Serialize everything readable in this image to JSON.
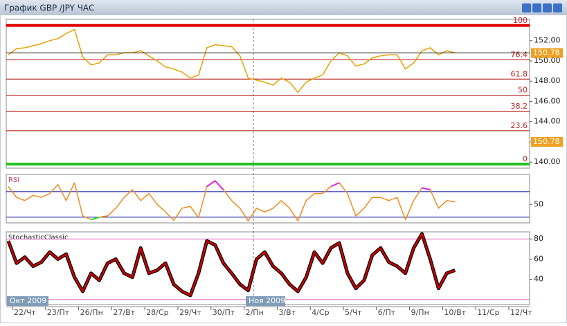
{
  "window": {
    "title": "График GBP /JPY  ЧАС"
  },
  "month_labels": [
    "Окт 2009",
    "Ноя 2009"
  ],
  "chart_data": [
    {
      "type": "line",
      "categories": [
        "22/Чт",
        null,
        null,
        null,
        "23/Пт",
        null,
        null,
        null,
        "26/Пн",
        null,
        null,
        null,
        "27/Вт",
        null,
        null,
        null,
        "28/Ср",
        null,
        null,
        null,
        "29/Чт",
        null,
        null,
        null,
        "30/Пт",
        null,
        null,
        null,
        "2/Пн",
        null,
        null,
        null,
        "3/Вт",
        null,
        null,
        null,
        "4/Ср",
        null,
        null,
        null,
        "5/Чт",
        null,
        null,
        null,
        "6/Пт",
        null,
        null,
        null,
        "9/Пн",
        null,
        null,
        null,
        "10/Вт",
        null,
        null,
        null,
        "11/Ср",
        null,
        null,
        null,
        "12/Чт",
        null,
        null,
        null
      ],
      "series": [
        {
          "color": "#e8a000",
          "values": [
            150.6,
            151.2,
            151.3,
            151.5,
            151.7,
            152.0,
            152.2,
            152.7,
            153.1,
            150.4,
            149.6,
            149.8,
            150.6,
            150.6,
            150.8,
            150.8,
            151.0,
            150.5,
            150.0,
            149.4,
            149.2,
            148.9,
            148.3,
            148.6,
            151.3,
            151.6,
            151.5,
            151.4,
            150.5,
            148.3,
            148.1,
            147.9,
            147.6,
            148.3,
            147.9,
            146.9,
            147.9,
            148.3,
            148.6,
            150.0,
            150.8,
            150.5,
            149.5,
            149.7,
            150.3,
            150.5,
            150.6,
            150.6,
            149.2,
            149.8,
            151.0,
            151.3,
            150.6,
            151.0,
            150.8,
            null,
            null,
            null,
            null,
            null,
            null,
            null,
            null,
            null
          ]
        }
      ],
      "ylim": [
        139.4,
        154.1
      ],
      "yticks": [
        {
          "value": 140,
          "label": "140.00"
        },
        {
          "value": 142,
          "label": "142.00"
        },
        {
          "value": 144,
          "label": "144.00"
        },
        {
          "value": 146,
          "label": "146.00"
        },
        {
          "value": 148,
          "label": "148.00"
        },
        {
          "value": 150,
          "label": "150.00"
        },
        {
          "value": 152,
          "label": "152.00"
        }
      ],
      "levels": [
        {
          "label": "100",
          "value": 153.5,
          "color": "#e00000"
        },
        {
          "label": "76.4",
          "value": 150.1,
          "color": "#b00000"
        },
        {
          "label": "61.8",
          "value": 148.2,
          "color": "#b00000"
        },
        {
          "label": "50",
          "value": 146.6,
          "color": "#b00000"
        },
        {
          "label": "38.2",
          "value": 145.0,
          "color": "#b00000"
        },
        {
          "label": "23.6",
          "value": 143.1,
          "color": "#b00000"
        },
        {
          "label": "0",
          "value": 139.8,
          "color": "#20c020"
        }
      ],
      "last_price": 150.78
    },
    {
      "type": "line",
      "title": "RSI",
      "series": [
        {
          "color": "#f08c1e",
          "values": [
            78,
            61,
            56,
            64,
            61,
            67,
            81,
            56,
            84,
            32,
            26,
            30,
            32,
            44,
            61,
            73,
            56,
            67,
            50,
            38,
            25,
            44,
            47,
            29,
            78,
            87,
            73,
            56,
            44,
            24,
            44,
            38,
            44,
            56,
            44,
            24,
            56,
            67,
            67,
            78,
            84,
            67,
            32,
            44,
            61,
            61,
            56,
            61,
            26,
            56,
            76,
            73,
            44,
            56,
            54,
            null,
            null,
            null,
            null,
            null,
            null,
            null,
            null,
            null
          ]
        }
      ],
      "ylim": [
        21,
        97
      ],
      "yticks": [
        50
      ],
      "levels": [
        30,
        70
      ],
      "level_color": "#0000a0",
      "overbought_color": "#e020e0",
      "oversold_color": "#20e020"
    },
    {
      "type": "line",
      "title": "StochasticClassic",
      "series": [
        {
          "color": "#d00000",
          "values": [
            78,
            56,
            62,
            53,
            57,
            67,
            60,
            65,
            42,
            28,
            46,
            39,
            56,
            60,
            46,
            42,
            71,
            46,
            49,
            56,
            35,
            28,
            24,
            46,
            78,
            74,
            56,
            46,
            35,
            29,
            60,
            67,
            53,
            46,
            35,
            28,
            42,
            67,
            56,
            71,
            76,
            46,
            31,
            39,
            64,
            71,
            57,
            53,
            46,
            71,
            85,
            60,
            31,
            46,
            49,
            null,
            null,
            null,
            null,
            null,
            null,
            null,
            null,
            null
          ]
        }
      ],
      "outline_color": "#000000",
      "ylim": [
        15,
        87
      ],
      "yticks": [
        40,
        60,
        80
      ],
      "levels": [
        20,
        80
      ],
      "level_color": "#e070c0"
    }
  ]
}
